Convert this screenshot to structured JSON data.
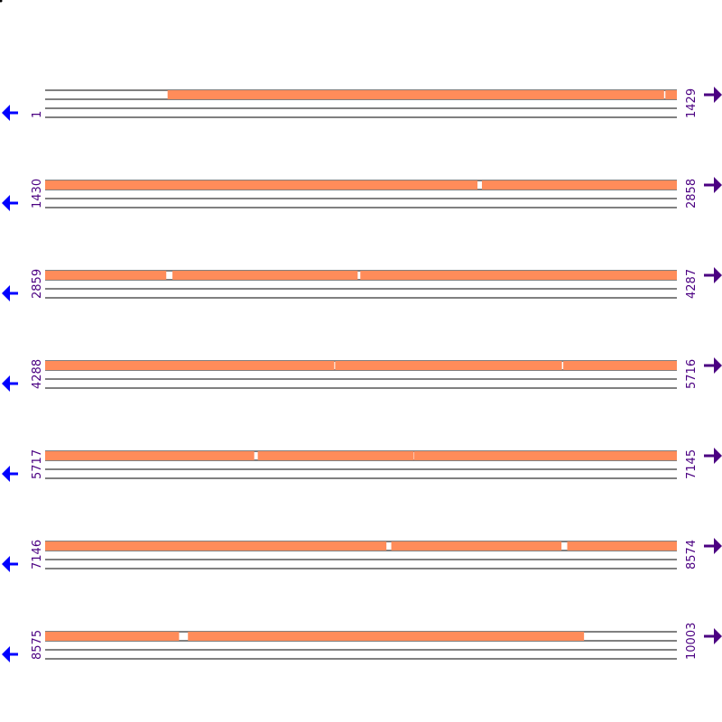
{
  "chart_data": {
    "type": "sequence-map",
    "colors": {
      "feature": "#ff8c5a",
      "line": "#000000",
      "left_arrow": "#0000ff",
      "right_arrow": "#4b0082",
      "number": "#4b0082"
    },
    "rows": [
      {
        "start": "1",
        "end": "1429",
        "range": [
          1,
          1429
        ],
        "features": [
          [
            278,
            1400
          ],
          [
            1404,
            1429
          ]
        ]
      },
      {
        "start": "1430",
        "end": "2858",
        "range": [
          1430,
          2858
        ],
        "features": [
          [
            1430,
            2407
          ],
          [
            2418,
            2858
          ]
        ]
      },
      {
        "start": "2859",
        "end": "4287",
        "range": [
          2859,
          4287
        ],
        "features": [
          [
            2859,
            3132
          ],
          [
            3147,
            3565
          ],
          [
            3572,
            4287
          ]
        ]
      },
      {
        "start": "4288",
        "end": "5716",
        "range": [
          4288,
          5716
        ],
        "features": [
          [
            4288,
            4941
          ],
          [
            4944,
            5456
          ],
          [
            5460,
            5716
          ]
        ]
      },
      {
        "start": "5717",
        "end": "7145",
        "range": [
          5717,
          7145
        ],
        "features": [
          [
            5717,
            6189
          ],
          [
            6198,
            6550
          ],
          [
            6552,
            7145
          ]
        ]
      },
      {
        "start": "7146",
        "end": "8574",
        "range": [
          7146,
          8574
        ],
        "features": [
          [
            7146,
            7917
          ],
          [
            7929,
            8313
          ],
          [
            8327,
            8574
          ]
        ]
      },
      {
        "start": "8575",
        "end": "10003",
        "range": [
          8575,
          10003
        ],
        "features": [
          [
            8575,
            8877
          ],
          [
            8898,
            9793
          ]
        ]
      }
    ]
  }
}
